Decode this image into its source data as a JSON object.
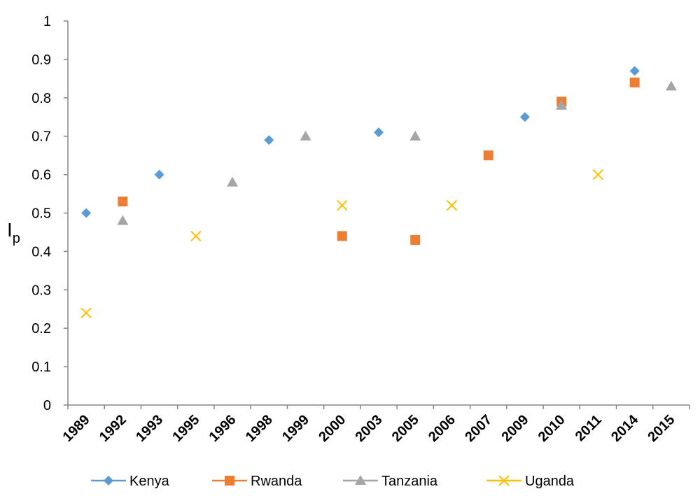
{
  "chart_data": {
    "type": "scatter",
    "categories": [
      "1989",
      "1992",
      "1993",
      "1995",
      "1996",
      "1998",
      "1999",
      "2000",
      "2003",
      "2005",
      "2006",
      "2007",
      "2009",
      "2010",
      "2011",
      "2014",
      "2015"
    ],
    "ylabel": "I",
    "ylabel_subscript": "p",
    "ylim": [
      0,
      1
    ],
    "yticks": [
      "0",
      "0.1",
      "0.2",
      "0.3",
      "0.4",
      "0.5",
      "0.6",
      "0.7",
      "0.8",
      "0.9",
      "1"
    ],
    "grid": false,
    "legend_position": "bottom",
    "series": [
      {
        "name": "Kenya",
        "color": "#5B9BD5",
        "marker": "diamond",
        "points": [
          {
            "x": "1989",
            "y": 0.5
          },
          {
            "x": "1993",
            "y": 0.6
          },
          {
            "x": "1998",
            "y": 0.69
          },
          {
            "x": "2003",
            "y": 0.71
          },
          {
            "x": "2009",
            "y": 0.75
          },
          {
            "x": "2014",
            "y": 0.87
          }
        ]
      },
      {
        "name": "Rwanda",
        "color": "#ED7D31",
        "marker": "square",
        "points": [
          {
            "x": "1992",
            "y": 0.53
          },
          {
            "x": "2000",
            "y": 0.44
          },
          {
            "x": "2005",
            "y": 0.43
          },
          {
            "x": "2007",
            "y": 0.65
          },
          {
            "x": "2010",
            "y": 0.79
          },
          {
            "x": "2014",
            "y": 0.84
          }
        ]
      },
      {
        "name": "Tanzania",
        "color": "#A5A5A5",
        "marker": "triangle",
        "points": [
          {
            "x": "1992",
            "y": 0.48
          },
          {
            "x": "1996",
            "y": 0.58
          },
          {
            "x": "1999",
            "y": 0.7
          },
          {
            "x": "2005",
            "y": 0.7
          },
          {
            "x": "2010",
            "y": 0.78
          },
          {
            "x": "2015",
            "y": 0.83
          }
        ]
      },
      {
        "name": "Uganda",
        "color": "#FFC000",
        "marker": "x",
        "points": [
          {
            "x": "1989",
            "y": 0.24
          },
          {
            "x": "1995",
            "y": 0.44
          },
          {
            "x": "2000",
            "y": 0.52
          },
          {
            "x": "2006",
            "y": 0.52
          },
          {
            "x": "2011",
            "y": 0.6
          }
        ]
      }
    ]
  }
}
